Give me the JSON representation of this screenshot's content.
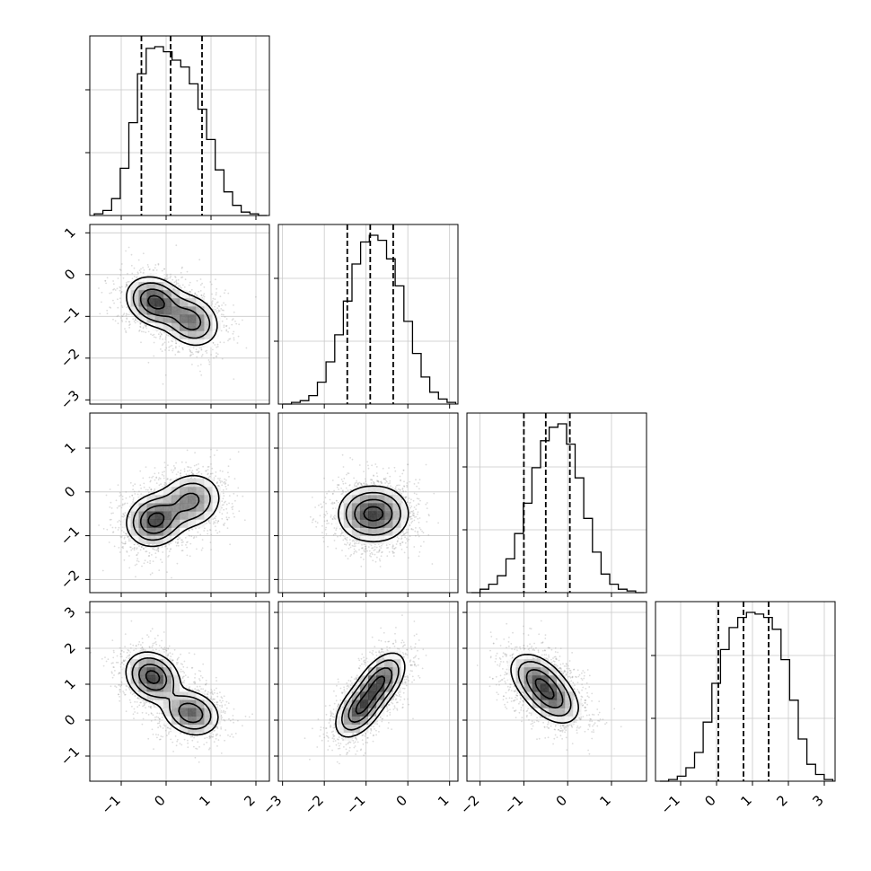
{
  "chart_data": {
    "type": "corner",
    "grid": true,
    "n_params": 4,
    "params": [
      {
        "index": 0,
        "range": [
          -1.7,
          2.3
        ],
        "ticks": [
          -1,
          0,
          1,
          2
        ],
        "tick_labels": [
          "−1",
          "0",
          "1",
          "2"
        ],
        "quantiles": [
          -0.55,
          0.1,
          0.8
        ],
        "hist_bins": [
          0.01,
          0.03,
          0.1,
          0.28,
          0.55,
          0.84,
          0.99,
          1.0,
          0.97,
          0.92,
          0.88,
          0.78,
          0.63,
          0.45,
          0.27,
          0.14,
          0.06,
          0.02,
          0.01,
          0.0
        ]
      },
      {
        "index": 1,
        "range": [
          -3.1,
          1.2
        ],
        "ticks": [
          -3,
          -2,
          -1,
          0,
          1
        ],
        "tick_labels": [
          "−3",
          "−2",
          "−1",
          "0",
          "1"
        ],
        "quantiles": [
          -1.45,
          -0.9,
          -0.35
        ],
        "hist_bins": [
          0.0,
          0.01,
          0.02,
          0.05,
          0.13,
          0.25,
          0.41,
          0.61,
          0.83,
          0.96,
          1.0,
          0.97,
          0.86,
          0.7,
          0.49,
          0.3,
          0.16,
          0.07,
          0.03,
          0.01
        ]
      },
      {
        "index": 2,
        "range": [
          -2.3,
          1.8
        ],
        "ticks": [
          -2,
          -1,
          0,
          1
        ],
        "tick_labels": [
          "−2",
          "−1",
          "0",
          "1"
        ],
        "quantiles": [
          -1.0,
          -0.5,
          0.05
        ],
        "hist_bins": [
          0.0,
          0.02,
          0.05,
          0.1,
          0.2,
          0.35,
          0.53,
          0.74,
          0.9,
          0.98,
          1.0,
          0.88,
          0.68,
          0.44,
          0.24,
          0.11,
          0.05,
          0.02,
          0.01,
          0.0
        ]
      },
      {
        "index": 3,
        "range": [
          -1.7,
          3.3
        ],
        "ticks": [
          -1,
          0,
          1,
          2,
          3
        ],
        "tick_labels": [
          "−1",
          "0",
          "1",
          "2",
          "3"
        ],
        "quantiles": [
          0.05,
          0.75,
          1.45
        ],
        "hist_bins": [
          0.0,
          0.01,
          0.03,
          0.08,
          0.17,
          0.35,
          0.58,
          0.78,
          0.91,
          0.97,
          1.0,
          0.99,
          0.97,
          0.9,
          0.72,
          0.48,
          0.25,
          0.1,
          0.04,
          0.01
        ]
      }
    ],
    "pairs": [
      {
        "x": 0,
        "y": 1,
        "modes": [
          {
            "mx": -0.25,
            "my": -0.65,
            "sx": 0.32,
            "sy": 0.3,
            "rho": -0.2,
            "w": 0.55
          },
          {
            "mx": 0.55,
            "my": -1.1,
            "sx": 0.32,
            "sy": 0.32,
            "rho": -0.2,
            "w": 0.45
          }
        ]
      },
      {
        "x": 0,
        "y": 2,
        "modes": [
          {
            "mx": -0.25,
            "my": -0.65,
            "sx": 0.32,
            "sy": 0.3,
            "rho": 0.1,
            "w": 0.55
          },
          {
            "mx": 0.55,
            "my": -0.2,
            "sx": 0.35,
            "sy": 0.32,
            "rho": 0.1,
            "w": 0.45
          }
        ]
      },
      {
        "x": 1,
        "y": 2,
        "modes": [
          {
            "mx": -1.05,
            "my": -0.5,
            "sx": 0.35,
            "sy": 0.32,
            "rho": 0.0,
            "w": 0.5
          },
          {
            "mx": -0.6,
            "my": -0.5,
            "sx": 0.35,
            "sy": 0.32,
            "rho": 0.0,
            "w": 0.5
          }
        ]
      },
      {
        "x": 0,
        "y": 3,
        "modes": [
          {
            "mx": -0.3,
            "my": 1.2,
            "sx": 0.3,
            "sy": 0.35,
            "rho": -0.2,
            "w": 0.55
          },
          {
            "mx": 0.55,
            "my": 0.2,
            "sx": 0.32,
            "sy": 0.32,
            "rho": -0.2,
            "w": 0.45
          }
        ]
      },
      {
        "x": 1,
        "y": 3,
        "modes": [
          {
            "mx": -1.15,
            "my": 0.3,
            "sx": 0.3,
            "sy": 0.4,
            "rho": 0.5,
            "w": 0.5
          },
          {
            "mx": -0.65,
            "my": 1.1,
            "sx": 0.3,
            "sy": 0.4,
            "rho": 0.5,
            "w": 0.5
          }
        ]
      },
      {
        "x": 2,
        "y": 3,
        "modes": [
          {
            "mx": -0.7,
            "my": 1.15,
            "sx": 0.33,
            "sy": 0.38,
            "rho": -0.4,
            "w": 0.5
          },
          {
            "mx": -0.35,
            "my": 0.6,
            "sx": 0.33,
            "sy": 0.38,
            "rho": -0.4,
            "w": 0.5
          }
        ]
      }
    ],
    "colors": {
      "line": "#000000",
      "scatter": "#9a9a9a",
      "grid": "#c8c8c8",
      "background": "#ffffff"
    }
  }
}
